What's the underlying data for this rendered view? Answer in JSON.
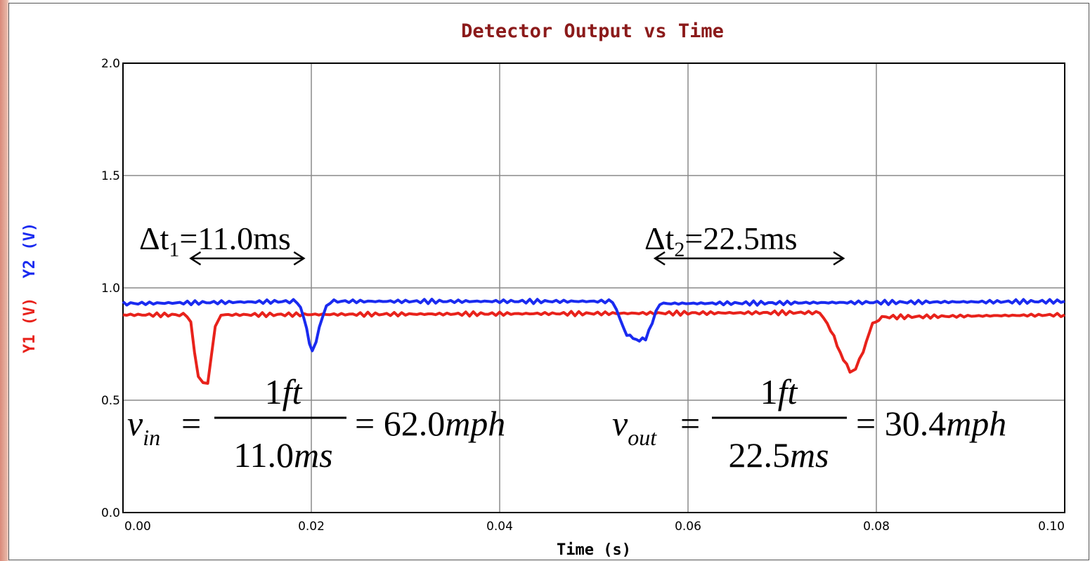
{
  "chart_data": {
    "type": "line",
    "title": "Detector Output vs Time",
    "xlabel": "Time (s)",
    "ylabel_parts": [
      {
        "text": "Y1 (V)",
        "color": "#e8221b"
      },
      {
        "text": "Y2 (V)",
        "color": "#1a2bf0"
      }
    ],
    "xlim": [
      0.0,
      0.1
    ],
    "ylim": [
      0.0,
      2.0
    ],
    "x_ticks": [
      "0.00",
      "0.02",
      "0.04",
      "0.06",
      "0.08",
      "0.10"
    ],
    "y_ticks": [
      "0.0",
      "0.5",
      "1.0",
      "1.5",
      "2.0"
    ],
    "grid": true,
    "series": [
      {
        "color": "#e8221b",
        "points": [
          [
            0.0,
            0.88
          ],
          [
            0.0068,
            0.88
          ],
          [
            0.0072,
            0.84
          ],
          [
            0.0076,
            0.72
          ],
          [
            0.008,
            0.6
          ],
          [
            0.0085,
            0.57
          ],
          [
            0.009,
            0.58
          ],
          [
            0.0094,
            0.7
          ],
          [
            0.0098,
            0.83
          ],
          [
            0.0104,
            0.88
          ],
          [
            0.074,
            0.89
          ],
          [
            0.0748,
            0.84
          ],
          [
            0.0755,
            0.78
          ],
          [
            0.0765,
            0.68
          ],
          [
            0.0772,
            0.63
          ],
          [
            0.0778,
            0.64
          ],
          [
            0.0786,
            0.72
          ],
          [
            0.0796,
            0.84
          ],
          [
            0.0806,
            0.87
          ],
          [
            0.1,
            0.88
          ]
        ]
      },
      {
        "color": "#1a2bf0",
        "points": [
          [
            0.0,
            0.93
          ],
          [
            0.0185,
            0.94
          ],
          [
            0.0192,
            0.87
          ],
          [
            0.0198,
            0.76
          ],
          [
            0.0201,
            0.72
          ],
          [
            0.0205,
            0.76
          ],
          [
            0.0212,
            0.88
          ],
          [
            0.022,
            0.94
          ],
          [
            0.052,
            0.94
          ],
          [
            0.0528,
            0.86
          ],
          [
            0.0535,
            0.79
          ],
          [
            0.0545,
            0.77
          ],
          [
            0.0555,
            0.77
          ],
          [
            0.0562,
            0.85
          ],
          [
            0.057,
            0.93
          ],
          [
            0.1,
            0.94
          ]
        ]
      }
    ],
    "annotations": {
      "dt1": {
        "prefix": "Δt",
        "sub": "1",
        "text": "=11.0ms",
        "x_from": 0.0072,
        "x_to": 0.0192
      },
      "dt2": {
        "prefix": "Δt",
        "sub": "2",
        "text": "=22.5ms",
        "x_from": 0.0565,
        "x_to": 0.0765
      },
      "vin": {
        "var": "v",
        "sub": "in",
        "eq": "=",
        "num": "1",
        "num_unit": "ft",
        "den": "11.0",
        "den_unit": "ms",
        "res": "= 62.0",
        "res_unit": "mph"
      },
      "vout": {
        "var": "v",
        "sub": "out",
        "eq": "=",
        "num": "1",
        "num_unit": "ft",
        "den": "22.5",
        "den_unit": "ms",
        "res": "= 30.4",
        "res_unit": "mph"
      }
    }
  }
}
